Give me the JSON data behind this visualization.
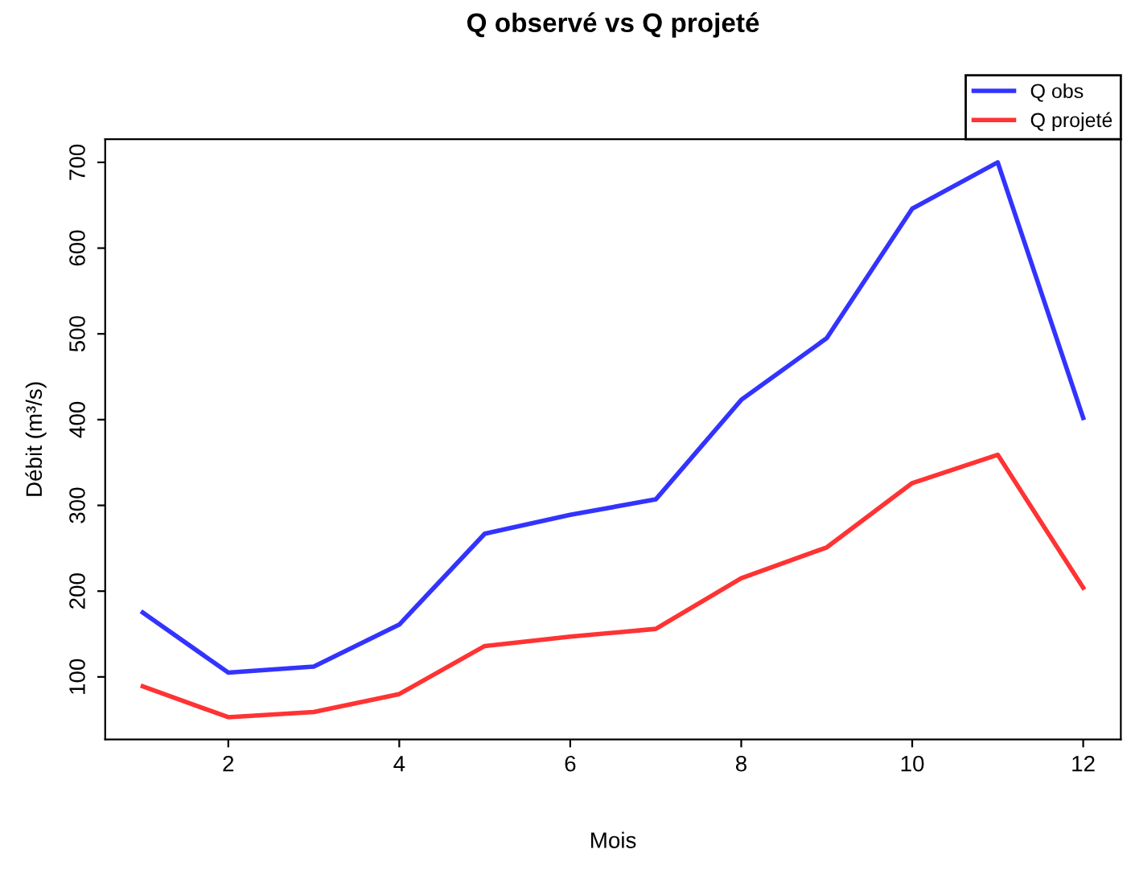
{
  "chart_data": {
    "type": "line",
    "title": "Q observé vs Q projeté",
    "xlabel": "Mois",
    "ylabel": "Débit (m³/s)",
    "x": [
      1,
      2,
      3,
      4,
      5,
      6,
      7,
      8,
      9,
      10,
      11,
      12
    ],
    "series": [
      {
        "name": "Q obs",
        "color": "#3333ff",
        "values": [
          175,
          105,
          112,
          161,
          267,
          289,
          307,
          423,
          495,
          646,
          700,
          402
        ]
      },
      {
        "name": "Q projeté",
        "color": "#ff3333",
        "values": [
          89,
          53,
          59,
          80,
          136,
          147,
          156,
          215,
          251,
          326,
          359,
          204
        ]
      }
    ],
    "xlim": [
      0.56,
      12.44
    ],
    "ylim": [
      27,
      727
    ],
    "xticks": [
      2,
      4,
      6,
      8,
      10,
      12
    ],
    "yticks": [
      100,
      200,
      300,
      400,
      500,
      600,
      700
    ],
    "grid": false,
    "legend": "top right",
    "marker": "none",
    "line_style": "solid"
  }
}
